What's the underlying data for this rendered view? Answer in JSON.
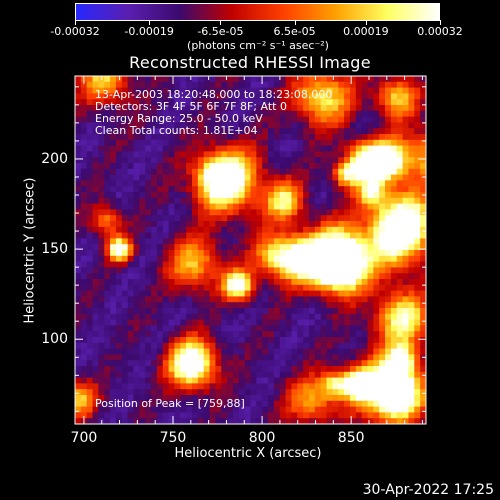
{
  "colorbar": {
    "tick_labels": [
      "-0.00032",
      "-0.00019",
      "-6.5e-05",
      "6.5e-05",
      "0.00019",
      "0.00032"
    ],
    "tick_values": [
      -0.00032,
      -0.00019,
      -6.5e-05,
      6.5e-05,
      0.00019,
      0.00032
    ],
    "units": "(photons cm⁻² s⁻¹ asec⁻²)",
    "min": -0.00032,
    "max": 0.00032
  },
  "annotations": {
    "time": "13-Apr-2003 18:20:48.000 to 18:23:08.000",
    "detectors": "Detectors: 3F 4F 5F 6F 7F 8F; Att 0",
    "energy": "Energy Range: 25.0 - 50.0 keV",
    "clean": "Clean     Total counts: 1.81E+04",
    "peak": "Position of Peak = [759,88]"
  },
  "datestamp": "30-Apr-2022 17:25",
  "chart_data": {
    "type": "heatmap",
    "title": "Reconstructed RHESSI Image",
    "xlabel": "Heliocentric X (arcsec)",
    "ylabel": "Heliocentric Y (arcsec)",
    "xlim": [
      695,
      892
    ],
    "ylim": [
      53,
      246
    ],
    "x_ticks": [
      700,
      750,
      800,
      850
    ],
    "y_ticks": [
      100,
      150,
      200
    ],
    "x_tick_labels": [
      "700",
      "750",
      "800",
      "850"
    ],
    "y_tick_labels": [
      "100",
      "150",
      "200"
    ],
    "colormap": "blue-purple-red-yellow-white",
    "colormap_stops": [
      "#2828ff",
      "#5a1fb0",
      "#3c0a6e",
      "#c00000",
      "#ff4000",
      "#ffa000",
      "#ffff60",
      "#ffffff"
    ],
    "peak": [
      759,
      88
    ]
  }
}
